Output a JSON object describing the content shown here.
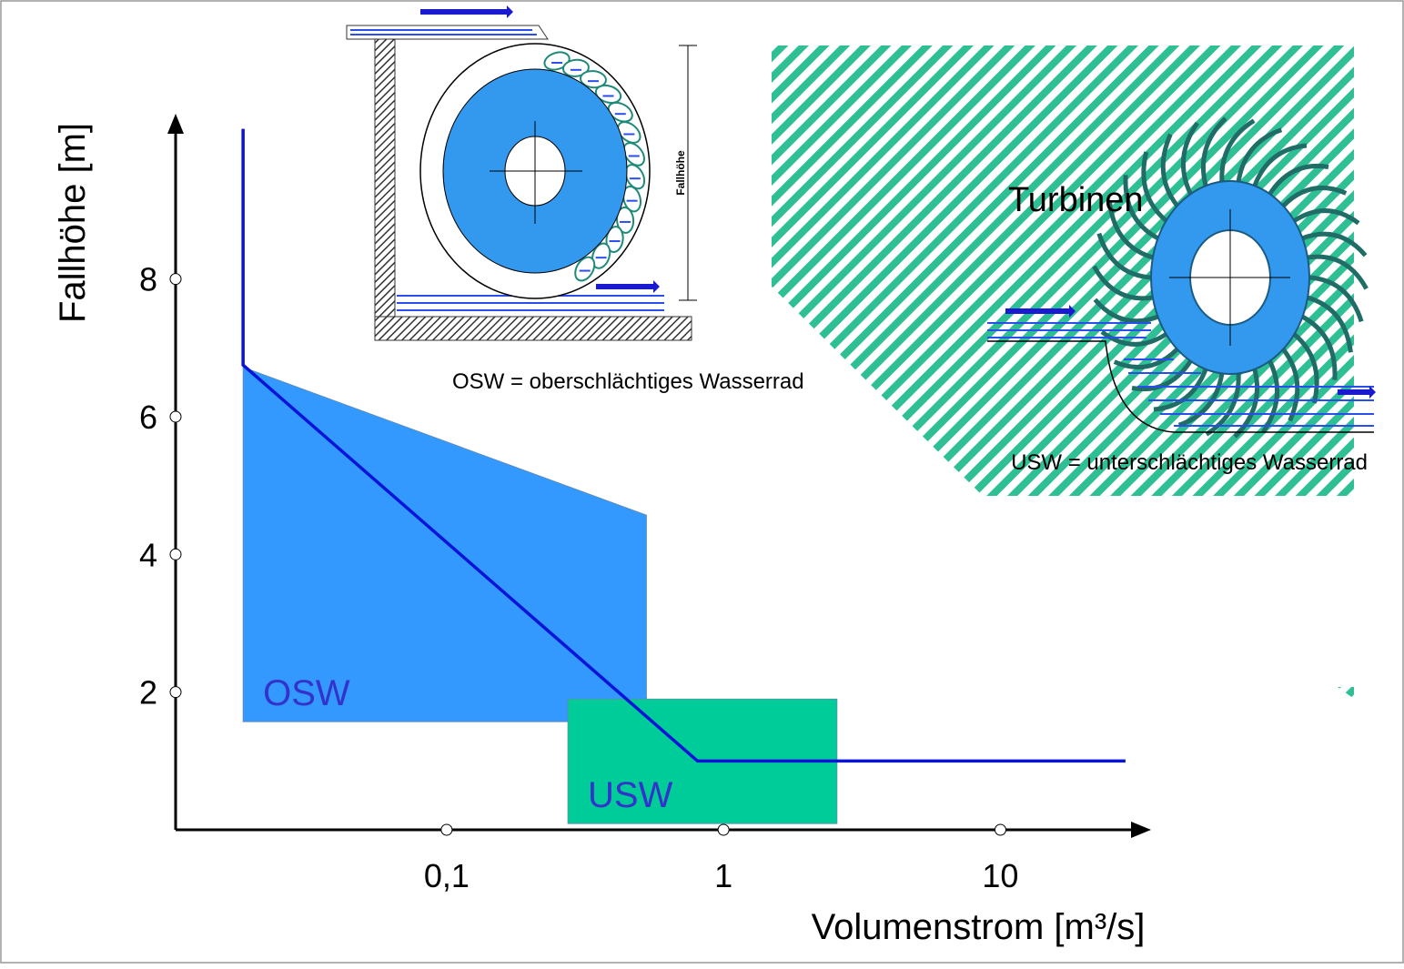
{
  "chart_data": {
    "type": "regions",
    "xlabel": "Volumenstrom [m³/s]",
    "ylabel": "Fallhöhe [m]",
    "xscale": "log",
    "xlim": [
      0.0105,
      35
    ],
    "ylim": [
      0,
      10.4
    ],
    "xticks": [
      {
        "value": 0.1,
        "label": "0,1"
      },
      1,
      10
    ],
    "yticks": [
      2,
      4,
      6,
      8
    ],
    "regions": [
      {
        "name": "OSW",
        "color": "#3399ff",
        "label_color": "#3333cc",
        "x": [
          0.0184,
          0.527,
          0.527,
          0.0184
        ],
        "y": [
          6.72,
          4.57,
          1.57,
          1.57
        ]
      },
      {
        "name": "USW",
        "color": "#00cc99",
        "label_color": "#3333cc",
        "x": [
          0.274,
          2.57,
          2.57,
          0.274
        ],
        "y": [
          1.9,
          1.9,
          0.09,
          0.09
        ]
      }
    ],
    "series": [
      {
        "color": "#0a14d8",
        "x": [
          0.0184,
          0.0184,
          0.805,
          28.3
        ],
        "values": [
          10.18,
          6.75,
          1.0,
          1.0
        ]
      }
    ],
    "annotations": [
      "OSW = oberschlächtiges Wasserrad",
      "USW = unterschlächtiges Wasserrad",
      "Turbinen",
      "Fallhöhe"
    ]
  }
}
